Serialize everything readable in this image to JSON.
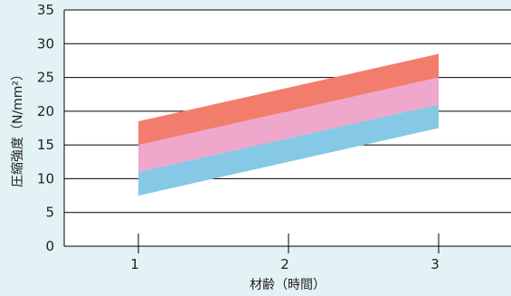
{
  "chart_data": {
    "type": "area",
    "x": [
      1,
      3
    ],
    "xlim": [
      0.5,
      3.5
    ],
    "ylim": [
      0,
      35
    ],
    "xticks": [
      1,
      2,
      3
    ],
    "yticks": [
      0,
      5,
      10,
      15,
      20,
      25,
      30,
      35
    ],
    "xlabel": "材齢（時間）",
    "ylabel": "圧縮強度（N/mm²）",
    "grid": "horizontal",
    "colors": {
      "background": "#e3f2f4",
      "plot_background": "#ffffff",
      "band_top": "#f37d6d",
      "band_middle": "#efa7cb",
      "band_bottom": "#85c9e6"
    },
    "bands": [
      {
        "lower": [
          7.5,
          17.5
        ],
        "upper": [
          11,
          21
        ],
        "color": "#85c9e6"
      },
      {
        "lower": [
          11,
          21
        ],
        "upper": [
          15,
          25
        ],
        "color": "#efa7cb"
      },
      {
        "lower": [
          15,
          25
        ],
        "upper": [
          18.5,
          28.5
        ],
        "color": "#f37d6d"
      }
    ]
  }
}
